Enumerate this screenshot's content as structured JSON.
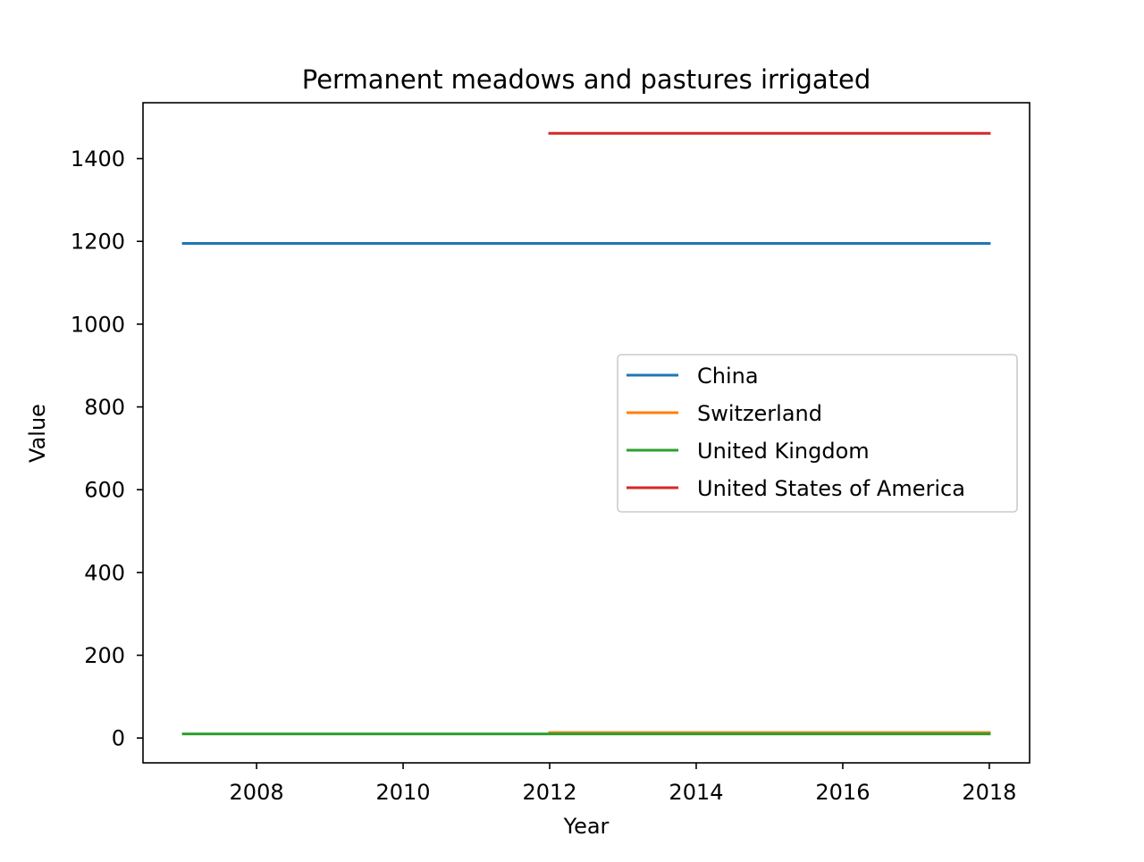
{
  "chart_data": {
    "type": "line",
    "title": "Permanent meadows and pastures irrigated",
    "xlabel": "Year",
    "ylabel": "Value",
    "xlim": [
      2006.45,
      2018.55
    ],
    "ylim": [
      -60,
      1535
    ],
    "xticks": [
      "2008",
      "2010",
      "2012",
      "2014",
      "2016",
      "2018"
    ],
    "yticks": [
      "0",
      "200",
      "400",
      "600",
      "800",
      "1000",
      "1200",
      "1400"
    ],
    "grid": false,
    "legend_position": "center-right",
    "series": [
      {
        "name": "China",
        "color": "#1f77b4",
        "x": [
          2007,
          2018
        ],
        "y": [
          1195,
          1195
        ]
      },
      {
        "name": "Switzerland",
        "color": "#ff7f0e",
        "x": [
          2012,
          2018
        ],
        "y": [
          13,
          13
        ]
      },
      {
        "name": "United Kingdom",
        "color": "#2ca02c",
        "x": [
          2007,
          2018
        ],
        "y": [
          10,
          10
        ]
      },
      {
        "name": "United States of America",
        "color": "#d62728",
        "x": [
          2012,
          2018
        ],
        "y": [
          1461,
          1461
        ]
      }
    ]
  }
}
